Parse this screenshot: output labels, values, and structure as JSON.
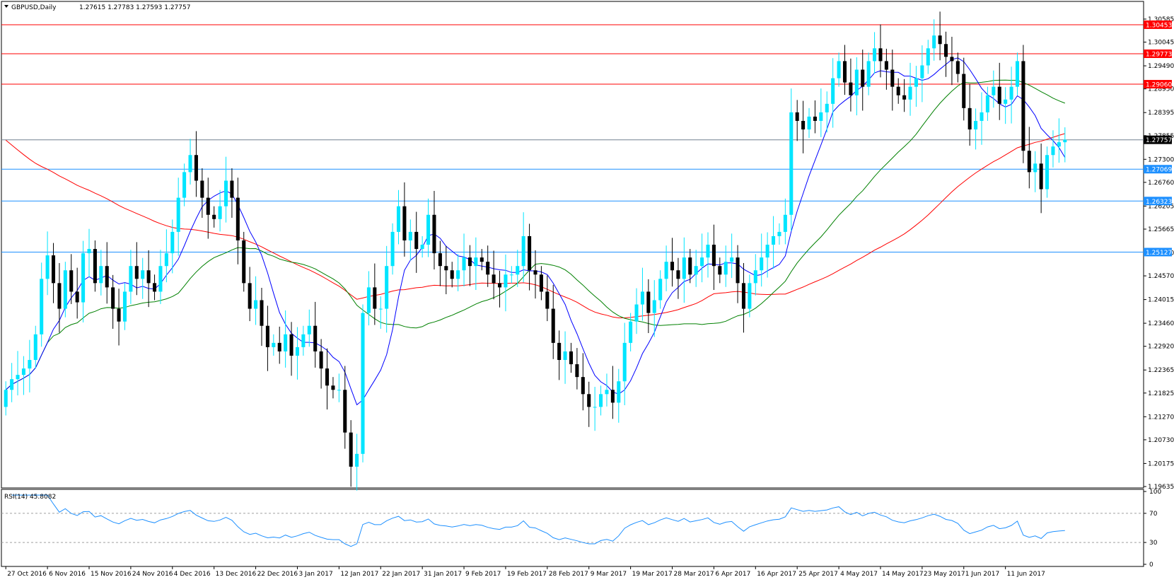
{
  "header": {
    "symbol": "GBPUSD,Daily",
    "ohlc": "1.27615 1.27783 1.27593 1.27757"
  },
  "rsi_panel": {
    "label": "RSI(14) 45.8082"
  },
  "colors": {
    "bull_candle": "#00e5ff",
    "bear_candle": "#000000",
    "ma_fast": "#0000ff",
    "ma_mid": "#008000",
    "ma_slow": "#ff0000",
    "support_line": "#1e90ff",
    "resistance_line": "#ff0000",
    "rsi_line": "#1e90ff"
  },
  "chart_data": {
    "type": "candlestick",
    "price_axis": {
      "ticks": [
        "1.30585",
        "1.30045",
        "1.29490",
        "1.28950",
        "1.28395",
        "1.27855",
        "1.27300",
        "1.26760",
        "1.26205",
        "1.25665",
        "1.25110",
        "1.24570",
        "1.24015",
        "1.23460",
        "1.22920",
        "1.22365",
        "1.21825",
        "1.21270",
        "1.20730",
        "1.20175",
        "1.19635"
      ],
      "ylim": [
        1.19635,
        1.308
      ]
    },
    "date_labels": [
      {
        "label": "27 Oct 2016",
        "index": 0
      },
      {
        "label": "6 Nov 2016",
        "index": 7
      },
      {
        "label": "15 Nov 2016",
        "index": 14
      },
      {
        "label": "24 Nov 2016",
        "index": 21
      },
      {
        "label": "4 Dec 2016",
        "index": 28
      },
      {
        "label": "13 Dec 2016",
        "index": 35
      },
      {
        "label": "22 Dec 2016",
        "index": 42
      },
      {
        "label": "3 Jan 2017",
        "index": 49
      },
      {
        "label": "12 Jan 2017",
        "index": 56
      },
      {
        "label": "22 Jan 2017",
        "index": 63
      },
      {
        "label": "31 Jan 2017",
        "index": 70
      },
      {
        "label": "9 Feb 2017",
        "index": 77
      },
      {
        "label": "19 Feb 2017",
        "index": 84
      },
      {
        "label": "28 Feb 2017",
        "index": 91
      },
      {
        "label": "9 Mar 2017",
        "index": 98
      },
      {
        "label": "19 Mar 2017",
        "index": 105
      },
      {
        "label": "28 Mar 2017",
        "index": 112
      },
      {
        "label": "6 Apr 2017",
        "index": 119
      },
      {
        "label": "16 Apr 2017",
        "index": 126
      },
      {
        "label": "25 Apr 2017",
        "index": 133
      },
      {
        "label": "4 May 2017",
        "index": 140
      },
      {
        "label": "14 May 2017",
        "index": 147
      },
      {
        "label": "23 May 2017",
        "index": 154
      },
      {
        "label": "1 Jun 2017",
        "index": 161
      },
      {
        "label": "11 Jun 2017",
        "index": 168
      }
    ],
    "horizontal_levels": [
      {
        "label": "1.30453",
        "value": 1.30453,
        "kind": "resistance"
      },
      {
        "label": "1.29773",
        "value": 1.29773,
        "kind": "resistance"
      },
      {
        "label": "1.29060",
        "value": 1.2906,
        "kind": "resistance"
      },
      {
        "label": "1.27757",
        "value": 1.27757,
        "kind": "current"
      },
      {
        "label": "1.27069",
        "value": 1.27069,
        "kind": "support"
      },
      {
        "label": "1.26323",
        "value": 1.26323,
        "kind": "support"
      },
      {
        "label": "1.25127",
        "value": 1.25127,
        "kind": "support"
      }
    ],
    "closes": [
      1.219,
      1.2215,
      1.2225,
      1.224,
      1.226,
      1.232,
      1.245,
      1.2505,
      1.244,
      1.238,
      1.247,
      1.242,
      1.2395,
      1.251,
      1.252,
      1.244,
      1.248,
      1.243,
      1.238,
      1.235,
      1.242,
      1.248,
      1.245,
      1.247,
      1.244,
      1.242,
      1.248,
      1.251,
      1.256,
      1.264,
      1.27,
      1.274,
      1.268,
      1.264,
      1.26,
      1.259,
      1.262,
      1.268,
      1.264,
      1.254,
      1.244,
      1.238,
      1.24,
      1.234,
      1.229,
      1.23,
      1.228,
      1.232,
      1.227,
      1.229,
      1.232,
      1.234,
      1.228,
      1.224,
      1.22,
      1.219,
      1.219,
      1.209,
      1.201,
      1.204,
      1.237,
      1.243,
      1.238,
      1.238,
      1.248,
      1.256,
      1.262,
      1.254,
      1.256,
      1.252,
      1.253,
      1.26,
      1.251,
      1.248,
      1.247,
      1.245,
      1.247,
      1.25,
      1.248,
      1.25,
      1.249,
      1.246,
      1.244,
      1.243,
      1.246,
      1.246,
      1.248,
      1.255,
      1.247,
      1.246,
      1.242,
      1.238,
      1.23,
      1.226,
      1.228,
      1.225,
      1.222,
      1.218,
      1.215,
      1.215,
      1.218,
      1.219,
      1.216,
      1.221,
      1.23,
      1.235,
      1.239,
      1.242,
      1.237,
      1.24,
      1.245,
      1.249,
      1.247,
      1.245,
      1.25,
      1.246,
      1.248,
      1.25,
      1.253,
      1.248,
      1.246,
      1.249,
      1.25,
      1.244,
      1.238,
      1.244,
      1.247,
      1.25,
      1.253,
      1.255,
      1.256,
      1.26,
      1.284,
      1.282,
      1.28,
      1.283,
      1.282,
      1.284,
      1.286,
      1.292,
      1.296,
      1.291,
      1.288,
      1.294,
      1.29,
      1.296,
      1.299,
      1.296,
      1.294,
      1.29,
      1.288,
      1.287,
      1.29,
      1.292,
      1.295,
      1.299,
      1.302,
      1.3,
      1.297,
      1.296,
      1.293,
      1.285,
      1.28,
      1.282,
      1.284,
      1.288,
      1.29,
      1.286,
      1.287,
      1.29,
      1.296,
      1.275,
      1.27,
      1.272,
      1.266,
      1.274,
      1.276,
      1.277,
      1.2776
    ],
    "rsi": {
      "label": "RSI(14) 45.8082",
      "ticks": [
        "100",
        "70",
        "30",
        "0"
      ],
      "ylim": [
        0,
        100
      ],
      "levels": [
        70,
        30
      ]
    }
  }
}
